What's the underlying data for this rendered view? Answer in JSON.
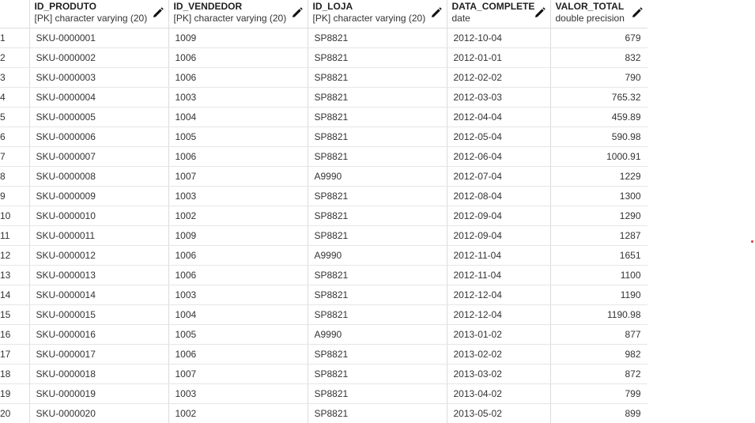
{
  "columns": [
    {
      "name": "ID_PRODUTO",
      "type": "[PK] character varying (20)"
    },
    {
      "name": "ID_VENDEDOR",
      "type": "[PK] character varying (20)"
    },
    {
      "name": "ID_LOJA",
      "type": "[PK] character varying (20)"
    },
    {
      "name": "DATA_COMPLETE",
      "type": "date"
    },
    {
      "name": "VALOR_TOTAL",
      "type": "double precision"
    }
  ],
  "edit_icon": "pencil-icon",
  "rows": [
    {
      "n": "1",
      "produto": "SKU-0000001",
      "vendedor": "1009",
      "loja": "SP8821",
      "data": "2012-10-04",
      "valor": "679"
    },
    {
      "n": "2",
      "produto": "SKU-0000002",
      "vendedor": "1006",
      "loja": "SP8821",
      "data": "2012-01-01",
      "valor": "832"
    },
    {
      "n": "3",
      "produto": "SKU-0000003",
      "vendedor": "1006",
      "loja": "SP8821",
      "data": "2012-02-02",
      "valor": "790"
    },
    {
      "n": "4",
      "produto": "SKU-0000004",
      "vendedor": "1003",
      "loja": "SP8821",
      "data": "2012-03-03",
      "valor": "765.32"
    },
    {
      "n": "5",
      "produto": "SKU-0000005",
      "vendedor": "1004",
      "loja": "SP8821",
      "data": "2012-04-04",
      "valor": "459.89"
    },
    {
      "n": "6",
      "produto": "SKU-0000006",
      "vendedor": "1005",
      "loja": "SP8821",
      "data": "2012-05-04",
      "valor": "590.98"
    },
    {
      "n": "7",
      "produto": "SKU-0000007",
      "vendedor": "1006",
      "loja": "SP8821",
      "data": "2012-06-04",
      "valor": "1000.91"
    },
    {
      "n": "8",
      "produto": "SKU-0000008",
      "vendedor": "1007",
      "loja": "A9990",
      "data": "2012-07-04",
      "valor": "1229"
    },
    {
      "n": "9",
      "produto": "SKU-0000009",
      "vendedor": "1003",
      "loja": "SP8821",
      "data": "2012-08-04",
      "valor": "1300"
    },
    {
      "n": "10",
      "produto": "SKU-0000010",
      "vendedor": "1002",
      "loja": "SP8821",
      "data": "2012-09-04",
      "valor": "1290"
    },
    {
      "n": "11",
      "produto": "SKU-0000011",
      "vendedor": "1009",
      "loja": "SP8821",
      "data": "2012-09-04",
      "valor": "1287"
    },
    {
      "n": "12",
      "produto": "SKU-0000012",
      "vendedor": "1006",
      "loja": "A9990",
      "data": "2012-11-04",
      "valor": "1651"
    },
    {
      "n": "13",
      "produto": "SKU-0000013",
      "vendedor": "1006",
      "loja": "SP8821",
      "data": "2012-11-04",
      "valor": "1100"
    },
    {
      "n": "14",
      "produto": "SKU-0000014",
      "vendedor": "1003",
      "loja": "SP8821",
      "data": "2012-12-04",
      "valor": "1190"
    },
    {
      "n": "15",
      "produto": "SKU-0000015",
      "vendedor": "1004",
      "loja": "SP8821",
      "data": "2012-12-04",
      "valor": "1190.98"
    },
    {
      "n": "16",
      "produto": "SKU-0000016",
      "vendedor": "1005",
      "loja": "A9990",
      "data": "2013-01-02",
      "valor": "877"
    },
    {
      "n": "17",
      "produto": "SKU-0000017",
      "vendedor": "1006",
      "loja": "SP8821",
      "data": "2013-02-02",
      "valor": "982"
    },
    {
      "n": "18",
      "produto": "SKU-0000018",
      "vendedor": "1007",
      "loja": "SP8821",
      "data": "2013-03-02",
      "valor": "872"
    },
    {
      "n": "19",
      "produto": "SKU-0000019",
      "vendedor": "1003",
      "loja": "SP8821",
      "data": "2013-04-02",
      "valor": "799"
    },
    {
      "n": "20",
      "produto": "SKU-0000020",
      "vendedor": "1002",
      "loja": "SP8821",
      "data": "2013-05-02",
      "valor": "899"
    }
  ]
}
